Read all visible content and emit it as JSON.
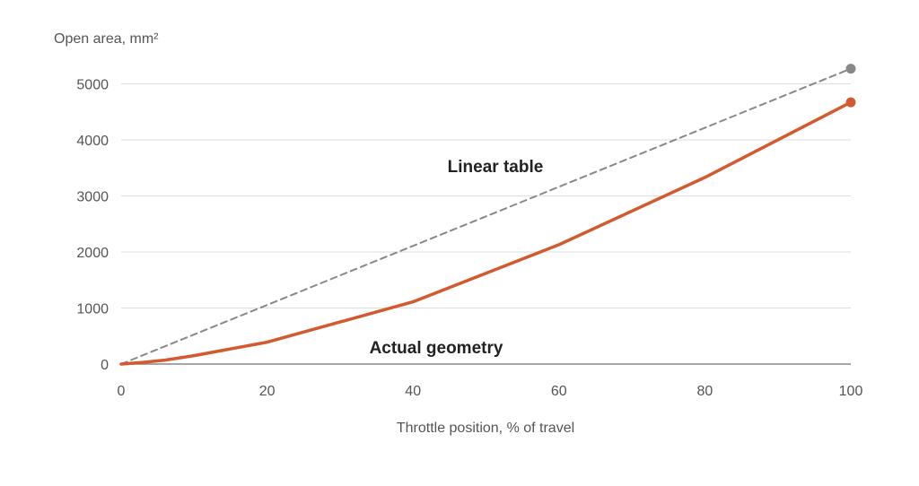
{
  "chart_data": {
    "type": "line",
    "ylabel": "Open area, mm²",
    "xlabel": "Throttle position, % of travel",
    "xlim": [
      0,
      100
    ],
    "ylim": [
      0,
      5000
    ],
    "xticks": [
      0,
      20,
      40,
      60,
      80,
      100
    ],
    "yticks": [
      0,
      1000,
      2000,
      3000,
      4000,
      5000
    ],
    "grid": "horizontal",
    "series": [
      {
        "name": "Linear table",
        "color": "#888888",
        "style": "dashed",
        "x": [
          0,
          100
        ],
        "y": [
          0,
          5270
        ]
      },
      {
        "name": "Actual geometry",
        "color": "#d35a2e",
        "style": "solid",
        "x": [
          0,
          3,
          6,
          10,
          20,
          40,
          60,
          80,
          100
        ],
        "y": [
          0,
          30,
          70,
          150,
          390,
          1110,
          2130,
          3330,
          4670
        ]
      }
    ]
  }
}
